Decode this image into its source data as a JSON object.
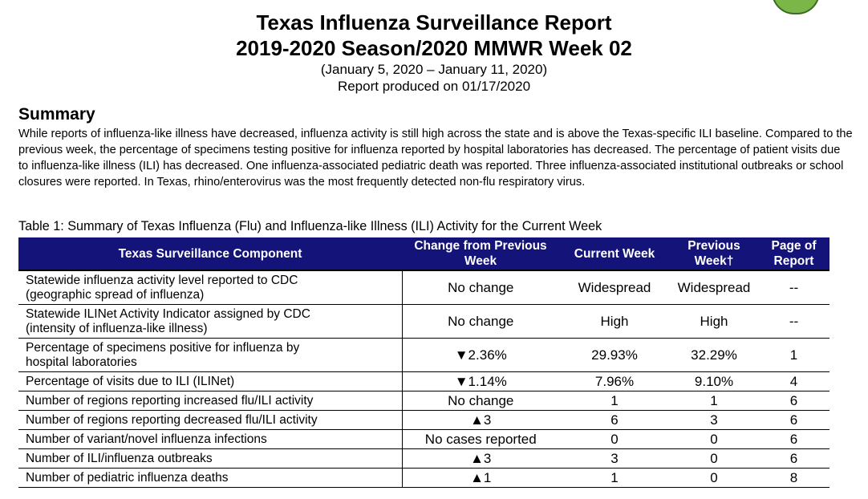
{
  "header": {
    "title_line1": "Texas Influenza Surveillance Report",
    "title_line2": "2019-2020 Season/2020 MMWR Week 02",
    "date_range": "(January 5, 2020 – January 11, 2020)",
    "produced": "Report produced on 01/17/2020"
  },
  "summary": {
    "heading": "Summary",
    "text": "While reports of influenza-like illness have decreased, influenza activity is still high across the state and is above the Texas-specific ILI baseline. Compared to the previous week, the percentage of specimens testing positive for influenza reported by hospital laboratories has decreased. The percentage of patient visits due to influenza-like illness (ILI) has decreased. One influenza-associated pediatric death was reported. Three influenza-associated institutional outbreaks or school closures were reported.  In Texas, rhino/enterovirus was the most frequently detected non-flu respiratory virus."
  },
  "table": {
    "caption": "Table 1: Summary of Texas Influenza (Flu) and Influenza-like Illness (ILI) Activity for the Current Week",
    "headers": {
      "component": "Texas Surveillance Component",
      "change": "Change from Previous Week",
      "current": "Current Week",
      "previous": "Previous Week†",
      "page": "Page of Report"
    },
    "rows": [
      {
        "component_line1": "Statewide influenza activity level reported to CDC",
        "component_line2": "(geographic spread of influenza)",
        "change": "No change",
        "current": "Widespread",
        "previous": "Widespread",
        "page": "--"
      },
      {
        "component_line1": "Statewide ILINet Activity Indicator assigned by CDC",
        "component_line2": "(intensity of influenza-like illness)",
        "change": "No change",
        "current": "High",
        "previous": "High",
        "page": "--"
      },
      {
        "component_line1": "Percentage of specimens positive for influenza by",
        "component_line2": "hospital laboratories",
        "change": "▼2.36%",
        "current": "29.93%",
        "previous": "32.29%",
        "page": "1"
      },
      {
        "component_line1": "Percentage of visits due to ILI (ILINet)",
        "component_line2": "",
        "change": "▼1.14%",
        "current": "7.96%",
        "previous": "9.10%",
        "page": "4"
      },
      {
        "component_line1": "Number of regions reporting increased flu/ILI activity",
        "component_line2": "",
        "change": "No change",
        "current": "1",
        "previous": "1",
        "page": "6"
      },
      {
        "component_line1": "Number of regions reporting decreased flu/ILI activity",
        "component_line2": "",
        "change": "▲3",
        "current": "6",
        "previous": "3",
        "page": "6"
      },
      {
        "component_line1": "Number of variant/novel influenza infections",
        "component_line2": "",
        "change": "No cases reported",
        "current": "0",
        "previous": "0",
        "page": "6"
      },
      {
        "component_line1": "Number of ILI/influenza outbreaks",
        "component_line2": "",
        "change": "▲3",
        "current": "3",
        "previous": "0",
        "page": "6"
      },
      {
        "component_line1": "Number of pediatric influenza deaths",
        "component_line2": "",
        "change": "▲1",
        "current": "1",
        "previous": "0",
        "page": "8"
      }
    ]
  },
  "colors": {
    "header_bg": "#13137a",
    "header_text": "#ffffff"
  }
}
